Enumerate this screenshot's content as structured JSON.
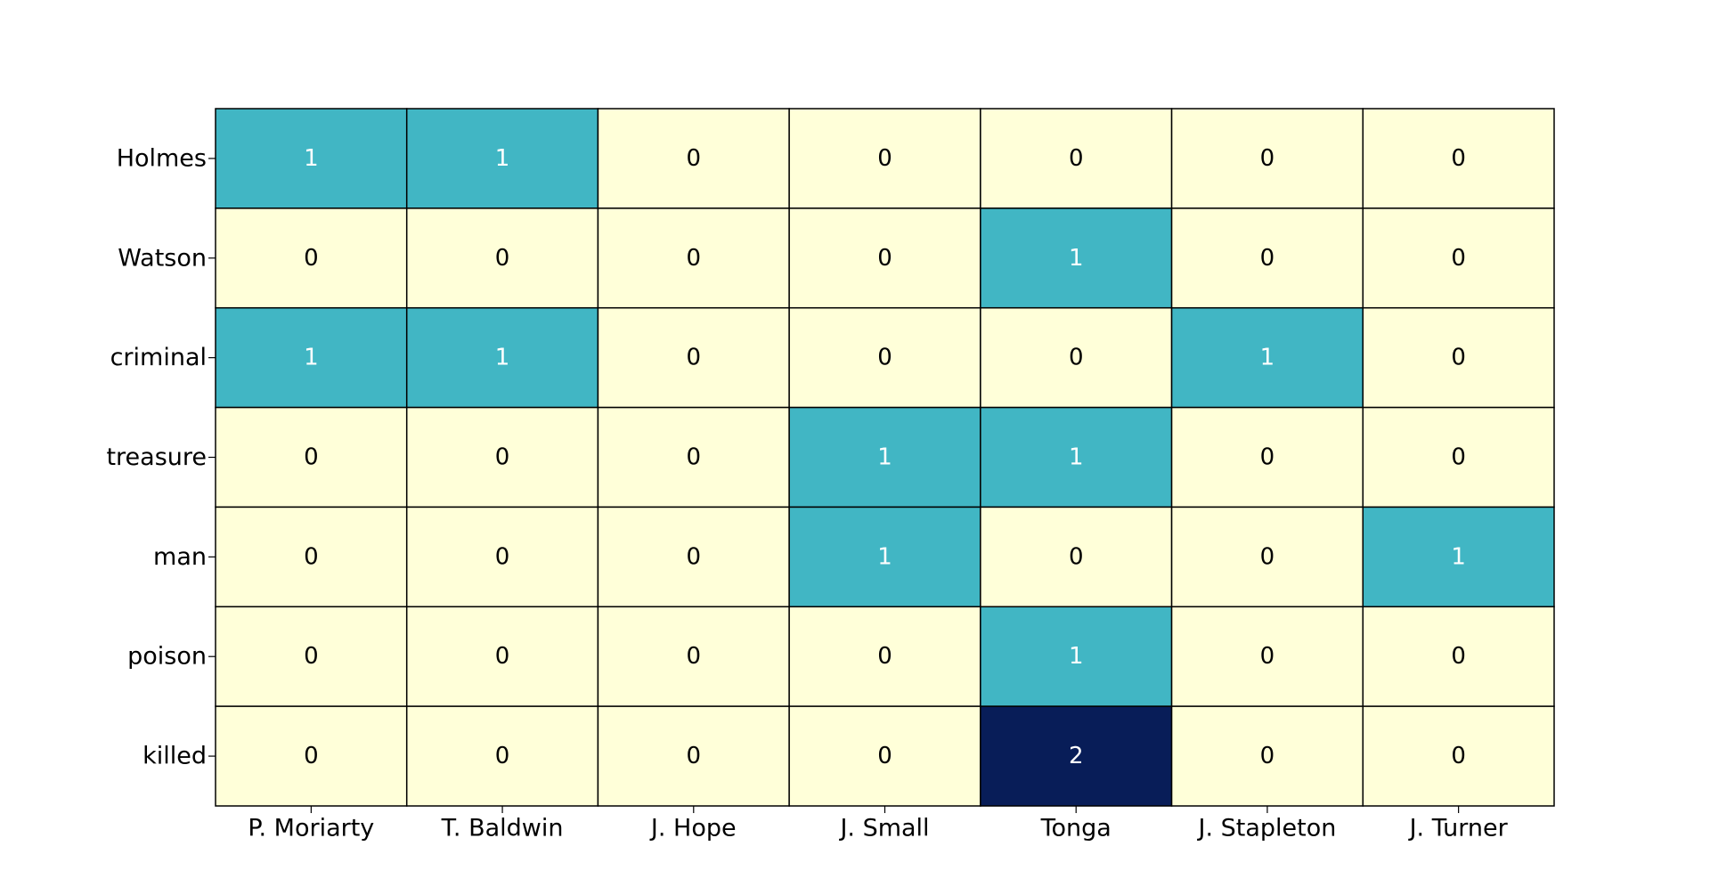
{
  "chart_data": {
    "type": "heatmap",
    "title": "",
    "xlabel": "",
    "ylabel": "",
    "x_categories": [
      "P. Moriarty",
      "T. Baldwin",
      "J. Hope",
      "J. Small",
      "Tonga",
      "J. Stapleton",
      "J. Turner"
    ],
    "y_categories": [
      "Holmes",
      "Watson",
      "criminal",
      "treasure",
      "man",
      "poison",
      "killed"
    ],
    "values": [
      [
        1,
        1,
        0,
        0,
        0,
        0,
        0
      ],
      [
        0,
        0,
        0,
        0,
        1,
        0,
        0
      ],
      [
        1,
        1,
        0,
        0,
        0,
        1,
        0
      ],
      [
        0,
        0,
        0,
        1,
        1,
        0,
        0
      ],
      [
        0,
        0,
        0,
        1,
        0,
        0,
        1
      ],
      [
        0,
        0,
        0,
        0,
        1,
        0,
        0
      ],
      [
        0,
        0,
        0,
        0,
        2,
        0,
        0
      ]
    ],
    "color_scale": {
      "0": "#ffffd9",
      "1": "#41b6c4",
      "2": "#081d58"
    },
    "annotations": true,
    "colorbar": false,
    "cell_border_color": "#000000"
  }
}
